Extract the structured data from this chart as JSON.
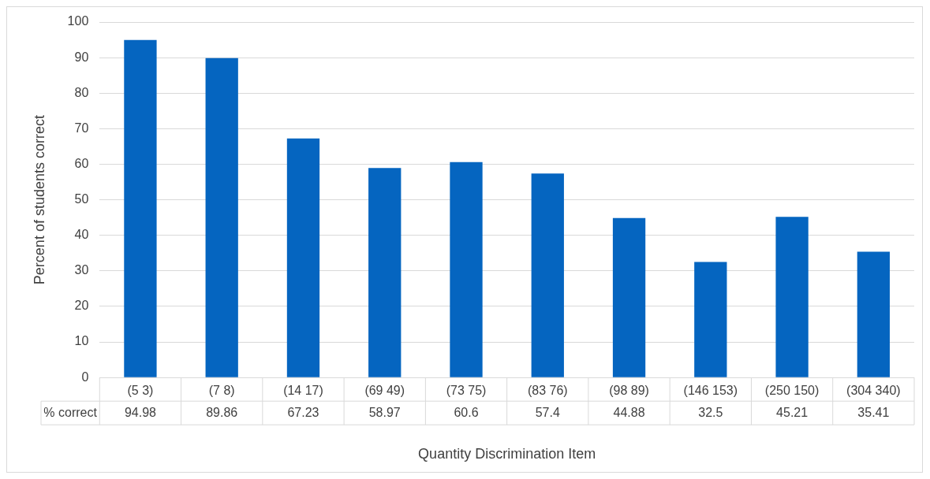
{
  "chart_data": {
    "type": "bar",
    "xlabel": "Quantity Discrimination Item",
    "ylabel": "Percent of students correct",
    "categories": [
      "(5 3)",
      "(7 8)",
      "(14 17)",
      "(69 49)",
      "(73 75)",
      "(83 76)",
      "(98 89)",
      "(146 153)",
      "(250 150)",
      "(304 340)"
    ],
    "series": [
      {
        "name": "% correct",
        "color": "#0565c0",
        "values": [
          94.98,
          89.86,
          67.23,
          58.97,
          60.6,
          57.4,
          44.88,
          32.5,
          45.21,
          35.41
        ]
      }
    ],
    "ylim": [
      0,
      100
    ],
    "yticks": [
      0,
      10,
      20,
      30,
      40,
      50,
      60,
      70,
      80,
      90,
      100
    ],
    "grid": "y",
    "legend": false,
    "data_labels": true
  }
}
